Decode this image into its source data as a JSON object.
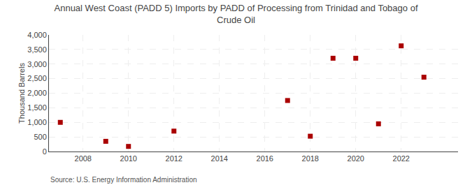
{
  "chart_data": {
    "type": "scatter",
    "title": "Annual West Coast (PADD 5) Imports by PADD of Processing from Trinidad and Tobago of\nCrude Oil",
    "ylabel": "Thousand Barrels",
    "source": "Source: U.S. Energy Information Administration",
    "x": [
      2007,
      2009,
      2010,
      2012,
      2017,
      2018,
      2019,
      2020,
      2021,
      2022,
      2023
    ],
    "values": [
      1000,
      350,
      175,
      700,
      1750,
      525,
      3200,
      3200,
      950,
      3625,
      2550
    ],
    "color": "#aa0000",
    "marker": "square",
    "xlim": [
      2006.5,
      2024.5
    ],
    "xticks": [
      2008,
      2010,
      2012,
      2014,
      2016,
      2018,
      2020,
      2022
    ],
    "ylim": [
      0,
      4000
    ],
    "yticks": [
      0,
      500,
      {
        "value": 1000,
        "label": "1,000"
      },
      {
        "value": 1500,
        "label": "1,500"
      },
      {
        "value": 2000,
        "label": "2,000"
      },
      {
        "value": 2500,
        "label": "2,500"
      },
      {
        "value": 3000,
        "label": "3,000"
      },
      {
        "value": 3500,
        "label": "3,500"
      },
      {
        "value": 4000,
        "label": "4,000"
      }
    ],
    "grid": true
  }
}
